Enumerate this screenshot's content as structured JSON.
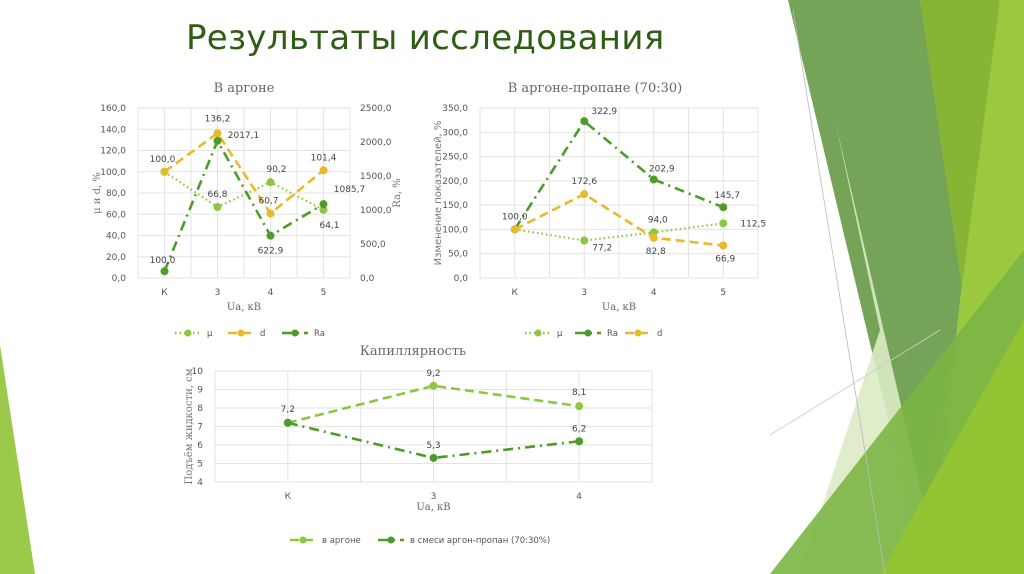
{
  "slide": {
    "title": "Результаты исследования",
    "colors": {
      "title": "#2f5d14",
      "mu": "#8dc63f",
      "d": "#e8b92a",
      "ra": "#4e9a2a",
      "argon": "#8dc63f",
      "mix": "#4e9a2a"
    }
  },
  "chart_data": [
    {
      "type": "line",
      "title": "В аргоне",
      "xlabel": "Ua, кВ",
      "ylabel": "μ и d, %",
      "ylabel_right": "Ra, %",
      "categories": [
        "К",
        "3",
        "4",
        "5"
      ],
      "ylim": [
        0,
        160
      ],
      "yticks": [
        "0,0",
        "20,0",
        "40,0",
        "60,0",
        "80,0",
        "100,0",
        "120,0",
        "140,0",
        "160,0"
      ],
      "ylim_right": [
        0,
        2500
      ],
      "yticks_right": [
        "0,0",
        "500,0",
        "1000,0",
        "1500,0",
        "2000,0",
        "2500,0"
      ],
      "grid": true,
      "legend_position": "bottom",
      "series": [
        {
          "name": "μ",
          "axis": "left",
          "style": "dotted",
          "values": [
            100.0,
            66.8,
            90.2,
            64.1
          ],
          "labels": [
            "",
            "66,8",
            "90,2",
            "64,1"
          ]
        },
        {
          "name": "d",
          "axis": "left",
          "style": "dashed",
          "values": [
            100.0,
            136.2,
            60.7,
            101.4
          ],
          "labels": [
            "100,0",
            "136,2",
            "60,7",
            "101,4"
          ]
        },
        {
          "name": "Ra",
          "axis": "right",
          "style": "dash-dot",
          "values": [
            100.0,
            2017.1,
            622.9,
            1085.7
          ],
          "labels": [
            "100,0",
            "2017,1",
            "622,9",
            "1085,7"
          ]
        }
      ]
    },
    {
      "type": "line",
      "title": "В аргоне-пропане (70:30)",
      "xlabel": "Ua, кВ",
      "ylabel": "Изменение показателей, %",
      "categories": [
        "К",
        "3",
        "4",
        "5"
      ],
      "ylim": [
        0,
        350
      ],
      "yticks": [
        "0,0",
        "50,0",
        "100,0",
        "150,0",
        "200,0",
        "250,0",
        "300,0",
        "350,0"
      ],
      "grid": true,
      "legend_position": "bottom",
      "series": [
        {
          "name": "μ",
          "style": "dotted",
          "values": [
            100.0,
            77.2,
            94.0,
            112.5
          ],
          "labels": [
            "",
            "77,2",
            "94,0",
            "112,5"
          ]
        },
        {
          "name": "Ra",
          "style": "dash-dot",
          "values": [
            100.0,
            322.9,
            202.9,
            145.7
          ],
          "labels": [
            "100,0",
            "322,9",
            "202,9",
            "145,7"
          ]
        },
        {
          "name": "d",
          "style": "dashed",
          "values": [
            100.0,
            172.6,
            82.8,
            66.9
          ],
          "labels": [
            "",
            "172,6",
            "82,8",
            "66,9"
          ]
        }
      ]
    },
    {
      "type": "line",
      "title": "Капиллярность",
      "xlabel": "Ua, кВ",
      "ylabel": "Подъём жидкости, см",
      "categories": [
        "К",
        "3",
        "4"
      ],
      "ylim": [
        4,
        10
      ],
      "yticks": [
        "4",
        "5",
        "6",
        "7",
        "8",
        "9",
        "10"
      ],
      "grid": true,
      "legend_position": "bottom",
      "series": [
        {
          "name": "в аргоне",
          "style": "dashed",
          "values": [
            7.2,
            9.2,
            8.1
          ],
          "labels": [
            "7,2",
            "9,2",
            "8,1"
          ]
        },
        {
          "name": "в смеси аргон-пропан (70:30%)",
          "style": "dash-dot",
          "values": [
            7.2,
            5.3,
            6.2
          ],
          "labels": [
            "",
            "5,3",
            "6,2"
          ]
        }
      ]
    }
  ]
}
